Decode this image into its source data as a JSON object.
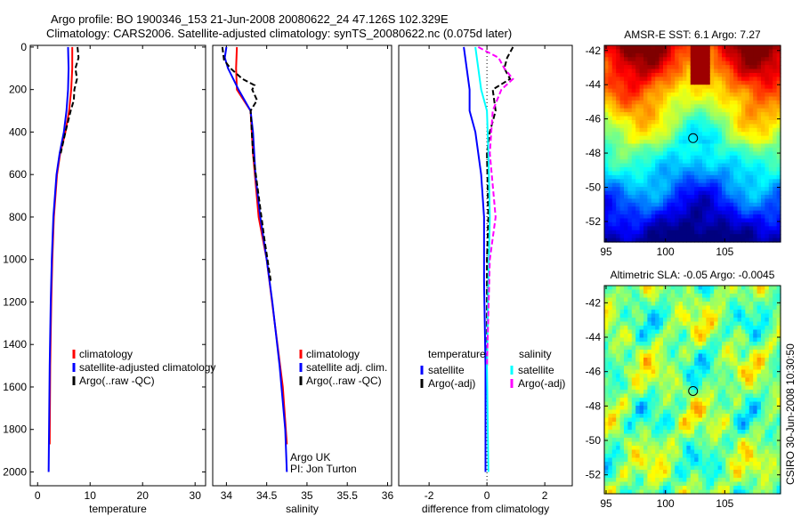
{
  "header": {
    "line1": "Argo profile: BO 1900346_153 21-Jun-2008 20080622_24 47.126S 102.329E",
    "line2": "Climatology: CARS2006. Satellite-adjusted climatology: synTS_20080622.nc (0.075d later)"
  },
  "stamp": "CSIRO 30-Jun-2008 10:30:50",
  "colors": {
    "clim": "#ff0000",
    "sat": "#0000ff",
    "argo": "#000000",
    "sal_sat": "#00ffff",
    "sal_argo": "#ff00ff"
  },
  "chart_data": [
    {
      "type": "line",
      "xlabel": "temperature",
      "xlim": [
        -1.4,
        32
      ],
      "ylim": [
        -8,
        2065
      ],
      "xticks": [
        "0",
        "10",
        "20",
        "30"
      ],
      "xtickvals": [
        0,
        10,
        20,
        30
      ],
      "yticks": [
        "0",
        "200",
        "400",
        "600",
        "800",
        "1000",
        "1200",
        "1400",
        "1600",
        "1800",
        "2000"
      ],
      "ytickvals": [
        0,
        200,
        400,
        600,
        800,
        1000,
        1200,
        1400,
        1600,
        1800,
        2000
      ],
      "legend": {
        "entries": [
          "climatology",
          "satellite-adjusted climatology",
          "Argo(..raw -QC)"
        ]
      },
      "series": [
        {
          "name": "climatology",
          "color": "#ff0000",
          "depth": [
            0,
            100,
            200,
            300,
            400,
            500,
            600,
            800,
            1000,
            1200,
            1500,
            1870
          ],
          "values": [
            6.6,
            6.6,
            6.4,
            6.0,
            5.3,
            4.3,
            3.7,
            3.1,
            2.8,
            2.6,
            2.4,
            2.3
          ]
        },
        {
          "name": "satellite-adjusted climatology",
          "color": "#0000ff",
          "depth": [
            0,
            100,
            200,
            300,
            400,
            500,
            600,
            800,
            1000,
            1200,
            1500,
            2000
          ],
          "values": [
            5.8,
            5.9,
            5.8,
            5.5,
            5.0,
            4.2,
            3.6,
            3.0,
            2.7,
            2.5,
            2.3,
            2.1
          ]
        },
        {
          "name": "Argo(..raw -QC)",
          "color": "#000000",
          "dashed": true,
          "depth": [
            0,
            50,
            100,
            150,
            200,
            250,
            300,
            350,
            400,
            500
          ],
          "values": [
            7.6,
            7.8,
            7.2,
            7.5,
            7.0,
            6.9,
            6.3,
            5.8,
            5.3,
            4.4
          ]
        }
      ]
    },
    {
      "type": "line",
      "xlabel": "salinity",
      "xlim": [
        33.83,
        36.05
      ],
      "ylim": [
        -8,
        2065
      ],
      "xticks": [
        "34",
        "34.5",
        "35",
        "35.5",
        "36"
      ],
      "xtickvals": [
        34,
        34.5,
        35,
        35.5,
        36
      ],
      "legend": {
        "entries": [
          "climatology",
          "satellite adj. clim.",
          "Argo(..raw -QC)"
        ]
      },
      "annotation": [
        "Argo UK",
        "PI: Jon Turton"
      ],
      "series": [
        {
          "name": "climatology",
          "color": "#ff0000",
          "depth": [
            0,
            100,
            200,
            300,
            500,
            800,
            1000,
            1300,
            1600,
            1870
          ],
          "values": [
            34.13,
            34.12,
            34.13,
            34.3,
            34.33,
            34.4,
            34.5,
            34.6,
            34.7,
            34.75
          ]
        },
        {
          "name": "satellite adj. clim.",
          "color": "#0000ff",
          "depth": [
            0,
            50,
            100,
            200,
            300,
            400,
            600,
            800,
            1000,
            1200,
            1500,
            1800,
            2000
          ],
          "values": [
            34.0,
            33.98,
            34.02,
            34.15,
            34.3,
            34.33,
            34.36,
            34.42,
            34.5,
            34.57,
            34.66,
            34.73,
            34.75
          ]
        },
        {
          "name": "Argo(..raw -QC)",
          "color": "#000000",
          "dashed": true,
          "depth": [
            0,
            60,
            100,
            150,
            180,
            200,
            250,
            300,
            500,
            700,
            900,
            1100
          ],
          "values": [
            33.95,
            33.97,
            34.05,
            34.2,
            34.35,
            34.32,
            34.38,
            34.3,
            34.33,
            34.4,
            34.47,
            34.55
          ]
        }
      ]
    },
    {
      "type": "line",
      "xlabel": "difference from climatology",
      "xlim": [
        -3.05,
        2.95
      ],
      "ylim": [
        -8,
        2065
      ],
      "xticks": [
        "-2",
        "0",
        "2"
      ],
      "xtickvals": [
        -2,
        0,
        2
      ],
      "legend": {
        "temp_header": "temperature",
        "sal_header": "salinity",
        "entries": [
          "satellite",
          "Argo(-adj)",
          "satellite",
          "Argo(-adj)"
        ]
      },
      "series": [
        {
          "name": "temperature satellite",
          "color": "#0000ff",
          "depth": [
            0,
            100,
            200,
            300,
            400,
            600,
            800,
            1100,
            1500,
            2000
          ],
          "values": [
            -0.8,
            -0.7,
            -0.6,
            -0.6,
            -0.4,
            -0.2,
            -0.1,
            -0.1,
            -0.05,
            -0.05
          ]
        },
        {
          "name": "temperature Argo(-adj)",
          "color": "#000000",
          "dashed": true,
          "depth": [
            0,
            50,
            100,
            150,
            200,
            300,
            400,
            500,
            800,
            1000,
            1500
          ],
          "values": [
            0.9,
            0.7,
            0.6,
            0.8,
            0.2,
            0.3,
            0.1,
            0.0,
            0.05,
            0.0,
            0.0
          ]
        },
        {
          "name": "salinity satellite",
          "color": "#00ffff",
          "depth": [
            0,
            100,
            200,
            300,
            500,
            800,
            1100,
            1500,
            2000
          ],
          "values": [
            -0.4,
            -0.3,
            -0.2,
            0.0,
            0.05,
            0.1,
            0.05,
            0.0,
            0.05
          ]
        },
        {
          "name": "salinity Argo(-adj)",
          "color": "#ff00ff",
          "dashed": true,
          "depth": [
            0,
            50,
            100,
            150,
            200,
            300,
            500,
            800,
            1000,
            1500
          ],
          "values": [
            -0.3,
            0.4,
            0.6,
            0.9,
            0.5,
            0.2,
            0.1,
            0.3,
            0.1,
            0.0
          ]
        }
      ]
    },
    {
      "type": "heatmap",
      "title": "AMSR-E SST: 6.1 Argo: 7.27",
      "xlim": [
        94.85,
        109.7
      ],
      "ylim": [
        -53.2,
        -41.7
      ],
      "xticks": [
        "95",
        "100",
        "105"
      ],
      "xtickvals": [
        95,
        100,
        105
      ],
      "yticks": [
        "-42",
        "-44",
        "-46",
        "-48",
        "-50",
        "-52"
      ],
      "ytickvals": [
        -42,
        -44,
        -46,
        -48,
        -50,
        -52
      ],
      "marker": {
        "lon": 102.329,
        "lat": -47.126
      }
    },
    {
      "type": "heatmap",
      "title": "Altimetric SLA: -0.05 Argo: -0.0045",
      "xlim": [
        94.85,
        109.7
      ],
      "ylim": [
        -53.1,
        -41.0
      ],
      "xticks": [
        "95",
        "100",
        "105"
      ],
      "xtickvals": [
        95,
        100,
        105
      ],
      "yticks": [
        "-42",
        "-44",
        "-46",
        "-48",
        "-50",
        "-52"
      ],
      "ytickvals": [
        -42,
        -44,
        -46,
        -48,
        -50,
        -52
      ],
      "marker": {
        "lon": 102.329,
        "lat": -47.126
      }
    }
  ]
}
